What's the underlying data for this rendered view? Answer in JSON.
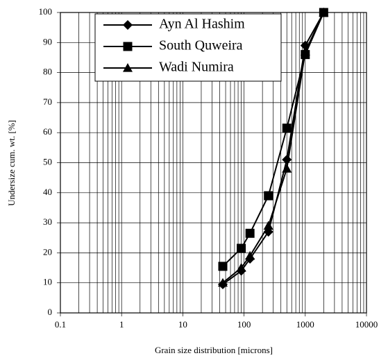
{
  "chart_data": {
    "type": "line",
    "xlabel": "Grain size distribution [microns]",
    "ylabel": "Undersize cum. wt. [%]",
    "x": [
      45,
      90,
      125,
      250,
      500,
      1000,
      2000
    ],
    "series": [
      {
        "name": "Ayn Al Hashim",
        "color": "#000000",
        "marker": "diamond",
        "values": [
          9.5,
          14,
          18,
          27,
          51,
          89,
          100
        ]
      },
      {
        "name": "South Quweira",
        "color": "#000000",
        "marker": "square",
        "values": [
          15.5,
          21.5,
          26.5,
          39,
          61.5,
          86,
          100
        ]
      },
      {
        "name": "Wadi Numira",
        "color": "#000000",
        "marker": "triangle",
        "values": [
          10,
          15,
          19,
          29,
          48,
          87,
          100
        ]
      }
    ],
    "xscale": "log",
    "xlim": [
      0.1,
      10000
    ],
    "xticks": [
      0.1,
      1,
      10,
      100,
      1000,
      10000
    ],
    "ylim": [
      0,
      100
    ],
    "yticks": [
      0,
      10,
      20,
      30,
      40,
      50,
      60,
      70,
      80,
      90,
      100
    ],
    "grid": true,
    "minor_grid": true,
    "legend": "top"
  }
}
